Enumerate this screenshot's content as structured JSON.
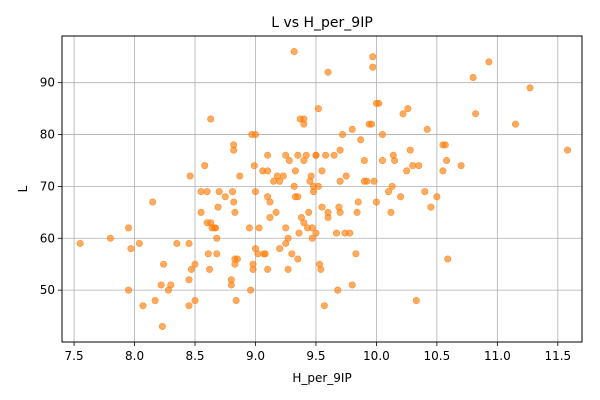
{
  "chart_data": {
    "type": "scatter",
    "title": "L vs H_per_9IP",
    "xlabel": "H_per_9IP",
    "ylabel": "L",
    "xlim": [
      7.4,
      11.7
    ],
    "ylim": [
      40,
      99
    ],
    "xticks": [
      "7.5",
      "8.0",
      "8.5",
      "9.0",
      "9.5",
      "10.0",
      "10.5",
      "11.0",
      "11.5"
    ],
    "yticks": [
      "50",
      "60",
      "70",
      "80",
      "90"
    ],
    "grid": true,
    "point_color": "#ff7f0e",
    "points": [
      [
        7.55,
        59
      ],
      [
        7.8,
        60
      ],
      [
        7.95,
        62
      ],
      [
        7.97,
        58
      ],
      [
        7.95,
        50
      ],
      [
        8.04,
        59
      ],
      [
        8.07,
        47
      ],
      [
        8.15,
        67
      ],
      [
        8.17,
        48
      ],
      [
        8.22,
        51
      ],
      [
        8.23,
        43
      ],
      [
        8.24,
        55
      ],
      [
        8.28,
        50
      ],
      [
        8.3,
        51
      ],
      [
        8.35,
        59
      ],
      [
        8.45,
        47
      ],
      [
        8.45,
        52
      ],
      [
        8.45,
        59
      ],
      [
        8.46,
        72
      ],
      [
        8.47,
        54
      ],
      [
        8.5,
        48
      ],
      [
        8.5,
        55
      ],
      [
        8.55,
        65
      ],
      [
        8.55,
        69
      ],
      [
        8.58,
        74
      ],
      [
        8.6,
        69
      ],
      [
        8.6,
        63
      ],
      [
        8.61,
        57
      ],
      [
        8.62,
        54
      ],
      [
        8.63,
        63
      ],
      [
        8.63,
        83
      ],
      [
        8.64,
        62
      ],
      [
        8.66,
        62
      ],
      [
        8.67,
        62
      ],
      [
        8.68,
        60
      ],
      [
        8.68,
        57
      ],
      [
        8.69,
        66
      ],
      [
        8.7,
        69
      ],
      [
        8.75,
        68
      ],
      [
        8.8,
        52
      ],
      [
        8.8,
        51
      ],
      [
        8.81,
        69
      ],
      [
        8.82,
        67
      ],
      [
        8.82,
        77
      ],
      [
        8.82,
        78
      ],
      [
        8.83,
        65
      ],
      [
        8.83,
        55
      ],
      [
        8.83,
        56
      ],
      [
        8.84,
        48
      ],
      [
        8.85,
        56
      ],
      [
        8.87,
        72
      ],
      [
        8.95,
        62
      ],
      [
        8.96,
        50
      ],
      [
        8.97,
        80
      ],
      [
        8.98,
        55
      ],
      [
        8.98,
        54
      ],
      [
        8.99,
        74
      ],
      [
        9.0,
        69
      ],
      [
        9.0,
        80
      ],
      [
        9.0,
        58
      ],
      [
        9.02,
        57
      ],
      [
        9.03,
        62
      ],
      [
        9.06,
        73
      ],
      [
        9.07,
        57
      ],
      [
        9.08,
        57
      ],
      [
        9.1,
        73
      ],
      [
        9.1,
        68
      ],
      [
        9.1,
        54
      ],
      [
        9.1,
        76
      ],
      [
        9.12,
        67
      ],
      [
        9.12,
        64
      ],
      [
        9.15,
        71
      ],
      [
        9.17,
        65
      ],
      [
        9.18,
        72
      ],
      [
        9.2,
        71
      ],
      [
        9.2,
        58
      ],
      [
        9.23,
        72
      ],
      [
        9.25,
        76
      ],
      [
        9.25,
        62
      ],
      [
        9.25,
        59
      ],
      [
        9.27,
        54
      ],
      [
        9.27,
        60
      ],
      [
        9.28,
        75
      ],
      [
        9.3,
        57
      ],
      [
        9.32,
        96
      ],
      [
        9.32,
        70
      ],
      [
        9.33,
        73
      ],
      [
        9.33,
        68
      ],
      [
        9.35,
        56
      ],
      [
        9.35,
        68
      ],
      [
        9.35,
        76
      ],
      [
        9.36,
        61
      ],
      [
        9.37,
        83
      ],
      [
        9.38,
        64
      ],
      [
        9.4,
        83
      ],
      [
        9.4,
        82
      ],
      [
        9.4,
        63
      ],
      [
        9.4,
        75
      ],
      [
        9.42,
        76
      ],
      [
        9.43,
        62
      ],
      [
        9.44,
        65
      ],
      [
        9.45,
        71
      ],
      [
        9.46,
        72
      ],
      [
        9.47,
        62
      ],
      [
        9.47,
        60
      ],
      [
        9.48,
        70
      ],
      [
        9.48,
        69
      ],
      [
        9.5,
        76
      ],
      [
        9.5,
        76
      ],
      [
        9.5,
        61
      ],
      [
        9.52,
        85
      ],
      [
        9.52,
        70
      ],
      [
        9.53,
        55
      ],
      [
        9.54,
        54
      ],
      [
        9.55,
        73
      ],
      [
        9.55,
        66
      ],
      [
        9.57,
        47
      ],
      [
        9.58,
        76
      ],
      [
        9.6,
        92
      ],
      [
        9.6,
        64
      ],
      [
        9.6,
        65
      ],
      [
        9.65,
        76
      ],
      [
        9.67,
        61
      ],
      [
        9.68,
        50
      ],
      [
        9.69,
        66
      ],
      [
        9.7,
        65
      ],
      [
        9.7,
        71
      ],
      [
        9.7,
        77
      ],
      [
        9.72,
        80
      ],
      [
        9.74,
        61
      ],
      [
        9.75,
        72
      ],
      [
        9.78,
        61
      ],
      [
        9.8,
        51
      ],
      [
        9.8,
        81
      ],
      [
        9.83,
        57
      ],
      [
        9.84,
        65
      ],
      [
        9.85,
        67
      ],
      [
        9.87,
        79
      ],
      [
        9.9,
        71
      ],
      [
        9.9,
        75
      ],
      [
        9.92,
        71
      ],
      [
        9.94,
        82
      ],
      [
        9.96,
        82
      ],
      [
        9.97,
        93
      ],
      [
        9.97,
        95
      ],
      [
        9.98,
        71
      ],
      [
        10.0,
        86
      ],
      [
        10.0,
        67
      ],
      [
        10.02,
        86
      ],
      [
        10.05,
        75
      ],
      [
        10.05,
        80
      ],
      [
        10.1,
        69
      ],
      [
        10.12,
        65
      ],
      [
        10.13,
        70
      ],
      [
        10.14,
        76
      ],
      [
        10.15,
        75
      ],
      [
        10.2,
        68
      ],
      [
        10.22,
        84
      ],
      [
        10.25,
        73
      ],
      [
        10.26,
        85
      ],
      [
        10.28,
        77
      ],
      [
        10.3,
        74
      ],
      [
        10.33,
        48
      ],
      [
        10.35,
        74
      ],
      [
        10.4,
        69
      ],
      [
        10.42,
        81
      ],
      [
        10.45,
        66
      ],
      [
        10.5,
        68
      ],
      [
        10.55,
        73
      ],
      [
        10.55,
        78
      ],
      [
        10.57,
        78
      ],
      [
        10.58,
        75
      ],
      [
        10.59,
        56
      ],
      [
        10.7,
        74
      ],
      [
        10.8,
        91
      ],
      [
        10.82,
        84
      ],
      [
        10.93,
        94
      ],
      [
        11.15,
        82
      ],
      [
        11.27,
        89
      ],
      [
        11.58,
        77
      ]
    ]
  }
}
